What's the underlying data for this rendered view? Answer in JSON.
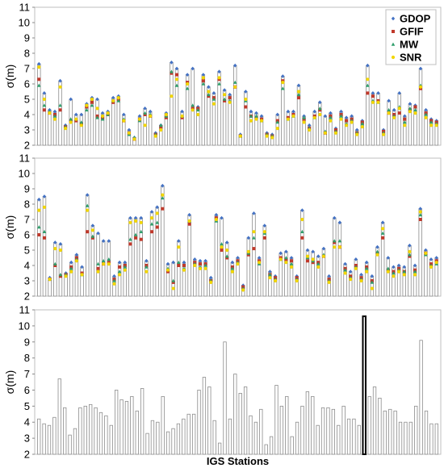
{
  "figure": {
    "ylabel": "σ(m)",
    "xlabel": "IGS Stations"
  },
  "legend": {
    "position": "top-right",
    "items": [
      {
        "label": "GDOP",
        "color": "#4472c4",
        "marker": "diamond"
      },
      {
        "label": "GFIF",
        "color": "#c0392b",
        "marker": "square"
      },
      {
        "label": "MW",
        "color": "#2e9e6b",
        "marker": "triangle"
      },
      {
        "label": "SNR",
        "color": "#f2d600",
        "marker": "circle"
      }
    ]
  },
  "chart_data": [
    {
      "type": "bar",
      "title": "",
      "xlabel": "",
      "ylabel": "σ(m)",
      "ylim": [
        2,
        11
      ],
      "yticks": [
        2,
        3,
        4,
        5,
        6,
        7,
        8,
        9,
        10,
        11
      ],
      "grid": false,
      "bar_color": "#ffffff",
      "bar_edge_color": "#888888",
      "values": [
        7.3,
        5.4,
        4.3,
        4.2,
        6.2,
        3.3,
        5.0,
        4.0,
        4.0,
        4.7,
        5.1,
        5.0,
        4.1,
        4.2,
        5.1,
        5.2,
        4.0,
        3.0,
        2.5,
        3.9,
        4.4,
        4.2,
        2.8,
        3.3,
        4.1,
        7.4,
        7.0,
        4.2,
        6.6,
        7.0,
        4.5,
        6.6,
        5.8,
        5.4,
        6.8,
        5.6,
        5.3,
        7.2,
        2.7,
        5.5,
        4.2,
        4.1,
        3.9,
        2.8,
        2.7,
        4.0,
        6.5,
        4.2,
        4.2,
        5.9,
        3.9,
        3.3,
        4.2,
        4.8,
        3.9,
        4.1,
        3.1,
        4.2,
        3.8,
        3.9,
        3.0,
        3.6,
        7.2,
        5.4,
        5.4,
        3.0,
        4.9,
        4.3,
        5.4,
        3.9,
        4.7,
        4.6,
        7.0,
        4.3,
        3.7,
        3.6
      ],
      "series": [
        {
          "name": "GDOP",
          "values": [
            7.3,
            5.4,
            4.3,
            4.2,
            6.2,
            3.3,
            5.0,
            4.0,
            4.0,
            4.7,
            5.1,
            5.0,
            4.1,
            4.2,
            5.1,
            5.2,
            4.0,
            3.0,
            2.5,
            3.9,
            4.4,
            4.2,
            2.8,
            3.3,
            4.1,
            7.4,
            7.0,
            4.2,
            6.6,
            7.0,
            4.5,
            6.6,
            5.8,
            5.4,
            6.8,
            5.6,
            5.3,
            7.2,
            2.7,
            5.5,
            4.2,
            4.1,
            3.9,
            2.8,
            2.7,
            4.0,
            6.5,
            4.2,
            4.2,
            5.9,
            3.9,
            3.3,
            4.2,
            4.8,
            3.9,
            4.1,
            3.1,
            4.2,
            3.8,
            3.9,
            3.0,
            3.6,
            7.2,
            5.4,
            5.4,
            3.0,
            4.9,
            4.3,
            5.4,
            3.9,
            4.7,
            4.6,
            7.0,
            4.3,
            3.7,
            3.6
          ]
        },
        {
          "name": "GFIF",
          "values": [
            6.3,
            4.3,
            4.1,
            4.0,
            4.3,
            3.2,
            3.6,
            3.6,
            3.4,
            4.5,
            4.8,
            3.9,
            3.8,
            4.0,
            4.8,
            5.0,
            3.6,
            2.8,
            2.4,
            3.7,
            4.0,
            3.9,
            2.7,
            3.2,
            3.8,
            6.7,
            6.6,
            3.8,
            6.1,
            4.4,
            4.4,
            6.2,
            5.2,
            5.1,
            6.3,
            4.9,
            5.1,
            5.8,
            2.6,
            4.5,
            3.9,
            3.8,
            3.7,
            2.7,
            2.6,
            3.6,
            6.2,
            3.8,
            4.0,
            5.1,
            3.7,
            3.1,
            3.9,
            4.3,
            2.8,
            3.9,
            3.0,
            4.0,
            3.6,
            3.7,
            2.8,
            3.5,
            5.4,
            5.2,
            4.9,
            2.9,
            4.1,
            4.0,
            4.1,
            3.7,
            4.3,
            4.5,
            5.7,
            4.1,
            3.6,
            3.5
          ]
        },
        {
          "name": "MW",
          "values": [
            5.9,
            4.6,
            4.2,
            3.9,
            4.6,
            3.2,
            3.7,
            3.7,
            3.5,
            4.3,
            4.6,
            3.8,
            3.7,
            4.0,
            4.9,
            4.9,
            3.7,
            2.7,
            2.5,
            3.6,
            4.1,
            4.0,
            2.7,
            3.3,
            3.9,
            6.8,
            5.9,
            3.9,
            5.7,
            4.6,
            4.3,
            6.0,
            5.3,
            5.0,
            6.0,
            5.0,
            4.9,
            6.1,
            2.6,
            4.9,
            3.9,
            3.9,
            3.6,
            2.7,
            2.6,
            3.5,
            5.7,
            3.7,
            3.9,
            5.3,
            3.8,
            3.1,
            3.8,
            4.4,
            2.9,
            3.8,
            2.9,
            3.9,
            3.4,
            3.6,
            2.8,
            3.4,
            5.9,
            4.9,
            4.8,
            2.8,
            4.3,
            3.9,
            4.5,
            3.5,
            4.4,
            4.3,
            5.9,
            4.0,
            3.5,
            3.4
          ]
        },
        {
          "name": "SNR",
          "values": [
            7.1,
            5.0,
            4.1,
            3.7,
            5.8,
            3.1,
            3.5,
            3.7,
            3.3,
            4.6,
            5.0,
            4.4,
            3.9,
            4.1,
            4.9,
            5.1,
            3.6,
            2.8,
            2.4,
            3.7,
            3.3,
            3.9,
            2.6,
            3.0,
            4.0,
            5.2,
            6.3,
            3.9,
            6.0,
            4.3,
            4.0,
            6.4,
            5.5,
            4.7,
            6.4,
            5.3,
            4.8,
            5.8,
            2.6,
            5.0,
            3.6,
            3.7,
            3.6,
            2.6,
            2.5,
            3.1,
            6.1,
            3.7,
            3.9,
            5.5,
            3.5,
            3.0,
            3.8,
            4.0,
            2.8,
            3.6,
            2.8,
            3.7,
            3.3,
            3.5,
            2.7,
            3.2,
            6.3,
            4.8,
            4.8,
            2.7,
            4.1,
            3.8,
            4.4,
            3.3,
            4.2,
            4.1,
            5.8,
            3.8,
            3.3,
            3.3
          ]
        }
      ]
    },
    {
      "type": "bar",
      "title": "",
      "xlabel": "",
      "ylabel": "σ(m)",
      "ylim": [
        2,
        11
      ],
      "yticks": [
        2,
        3,
        4,
        5,
        6,
        7,
        8,
        9,
        10,
        11
      ],
      "grid": false,
      "bar_color": "#ffffff",
      "bar_edge_color": "#888888",
      "values": [
        8.3,
        8.5,
        3.2,
        5.5,
        5.4,
        3.5,
        4.2,
        4.7,
        3.9,
        8.6,
        6.6,
        6.1,
        5.6,
        5.6,
        3.3,
        4.2,
        4.2,
        7.1,
        7.1,
        7.1,
        4.3,
        7.5,
        7.8,
        9.2,
        4.1,
        4.2,
        5.6,
        4.2,
        7.3,
        4.4,
        4.3,
        4.3,
        3.2,
        7.3,
        7.1,
        5.5,
        4.2,
        4.5,
        2.7,
        5.8,
        7.4,
        4.5,
        6.6,
        3.6,
        3.3,
        4.8,
        4.9,
        4.5,
        3.3,
        7.6,
        5.0,
        4.9,
        4.6,
        5.1,
        3.3,
        7.1,
        6.8,
        4.1,
        3.6,
        4.4,
        3.4,
        4.2,
        3.3,
        5.2,
        6.8,
        4.5,
        3.9,
        4.0,
        3.9,
        5.3,
        4.0,
        7.7,
        5.0,
        4.4,
        4.5
      ],
      "series": [
        {
          "name": "GDOP",
          "values": [
            8.3,
            8.5,
            3.2,
            5.5,
            5.4,
            3.5,
            4.2,
            4.7,
            3.9,
            8.6,
            6.6,
            6.1,
            5.6,
            5.6,
            3.3,
            4.2,
            4.2,
            7.1,
            7.1,
            7.1,
            4.3,
            7.5,
            7.8,
            9.2,
            4.1,
            4.2,
            5.6,
            4.2,
            7.3,
            4.4,
            4.3,
            4.3,
            3.2,
            7.3,
            7.1,
            5.5,
            4.2,
            4.5,
            2.7,
            5.8,
            7.4,
            4.5,
            6.6,
            3.6,
            3.3,
            4.8,
            4.9,
            4.5,
            3.3,
            7.6,
            5.0,
            4.9,
            4.6,
            5.1,
            3.3,
            7.1,
            6.8,
            4.1,
            3.6,
            4.4,
            3.4,
            4.2,
            3.3,
            5.2,
            6.8,
            4.5,
            3.9,
            4.0,
            3.9,
            5.3,
            4.0,
            7.7,
            5.0,
            4.4,
            4.5
          ]
        },
        {
          "name": "GFIF",
          "values": [
            6.0,
            5.8,
            3.1,
            4.0,
            3.3,
            3.4,
            3.9,
            4.5,
            3.5,
            6.2,
            5.8,
            3.8,
            4.1,
            4.2,
            3.1,
            3.9,
            4.0,
            5.4,
            5.8,
            5.7,
            4.0,
            6.2,
            6.5,
            7.7,
            3.6,
            2.9,
            4.0,
            4.0,
            6.7,
            4.2,
            4.1,
            4.1,
            3.0,
            7.1,
            5.0,
            4.5,
            3.9,
            4.3,
            2.6,
            4.7,
            5.1,
            4.3,
            5.8,
            3.4,
            3.2,
            4.5,
            4.4,
            4.3,
            3.2,
            5.8,
            4.3,
            4.2,
            4.2,
            4.6,
            3.1,
            5.5,
            5.2,
            3.8,
            3.3,
            4.0,
            3.2,
            3.9,
            3.0,
            4.8,
            5.8,
            3.7,
            3.6,
            3.8,
            3.6,
            4.6,
            3.7,
            7.0,
            4.8,
            4.1,
            4.3
          ]
        },
        {
          "name": "MW",
          "values": [
            6.5,
            6.2,
            3.1,
            4.1,
            3.4,
            3.4,
            3.8,
            4.4,
            3.4,
            7.9,
            5.9,
            4.1,
            4.3,
            4.4,
            3.0,
            3.6,
            3.9,
            5.7,
            6.0,
            6.2,
            3.9,
            6.7,
            6.8,
            8.4,
            3.8,
            3.0,
            4.2,
            3.8,
            6.9,
            4.1,
            3.9,
            4.0,
            3.0,
            6.9,
            5.4,
            4.6,
            3.8,
            4.2,
            2.5,
            4.8,
            5.8,
            4.1,
            6.1,
            3.4,
            3.1,
            4.4,
            4.5,
            4.1,
            3.1,
            6.2,
            4.5,
            4.3,
            4.1,
            4.7,
            3.0,
            5.6,
            5.6,
            3.7,
            3.2,
            3.9,
            3.1,
            3.8,
            2.9,
            4.9,
            6.1,
            3.8,
            3.5,
            3.7,
            3.6,
            4.7,
            3.6,
            7.3,
            4.7,
            4.0,
            4.1
          ]
        },
        {
          "name": "SNR",
          "values": [
            7.6,
            7.8,
            3.1,
            5.1,
            5.0,
            3.3,
            3.6,
            4.3,
            3.4,
            7.6,
            6.3,
            3.6,
            4.1,
            4.1,
            2.8,
            3.4,
            3.7,
            6.8,
            6.9,
            6.8,
            3.6,
            7.1,
            7.4,
            8.6,
            3.7,
            2.5,
            5.2,
            3.7,
            6.9,
            4.0,
            3.8,
            3.8,
            2.9,
            7.0,
            5.2,
            5.0,
            3.6,
            4.1,
            2.4,
            4.9,
            6.2,
            4.2,
            6.2,
            3.2,
            3.0,
            4.4,
            4.2,
            3.9,
            3.0,
            7.0,
            4.6,
            4.4,
            3.9,
            4.6,
            2.9,
            5.2,
            5.2,
            3.5,
            3.1,
            3.8,
            3.0,
            3.6,
            2.5,
            4.7,
            6.4,
            3.6,
            3.3,
            3.6,
            3.4,
            4.9,
            3.4,
            7.5,
            4.8,
            3.9,
            4.2
          ]
        }
      ]
    },
    {
      "type": "bar",
      "title": "",
      "xlabel": "IGS Stations",
      "ylabel": "σ(m)",
      "ylim": [
        2,
        11
      ],
      "yticks": [
        2,
        3,
        4,
        5,
        6,
        7,
        8,
        9,
        10,
        11
      ],
      "grid": false,
      "bar_color": "#ffffff",
      "bar_edge_color": "#888888",
      "highlight_index": 63,
      "values": [
        4.2,
        3.9,
        3.8,
        4.3,
        6.7,
        4.9,
        3.2,
        3.6,
        4.9,
        5.0,
        5.1,
        4.9,
        4.6,
        4.4,
        3.8,
        6.0,
        5.4,
        5.3,
        5.6,
        4.7,
        6.1,
        3.3,
        4.1,
        4.0,
        5.6,
        3.4,
        3.6,
        3.9,
        4.2,
        4.5,
        4.5,
        6.0,
        6.8,
        6.2,
        4.1,
        2.7,
        9.0,
        4.2,
        7.0,
        5.8,
        6.2,
        4.4,
        4.0,
        4.8,
        2.6,
        3.1,
        6.3,
        5.0,
        5.6,
        3.1,
        4.0,
        5.0,
        5.9,
        5.6,
        3.8,
        4.9,
        4.9,
        4.8,
        3.8,
        5.0,
        4.2,
        4.2,
        3.8,
        10.6,
        5.6,
        6.2,
        5.5,
        4.7,
        4.8,
        4.7,
        4.0,
        4.0,
        4.0,
        5.0,
        9.1,
        4.7,
        3.9,
        3.9
      ]
    }
  ]
}
